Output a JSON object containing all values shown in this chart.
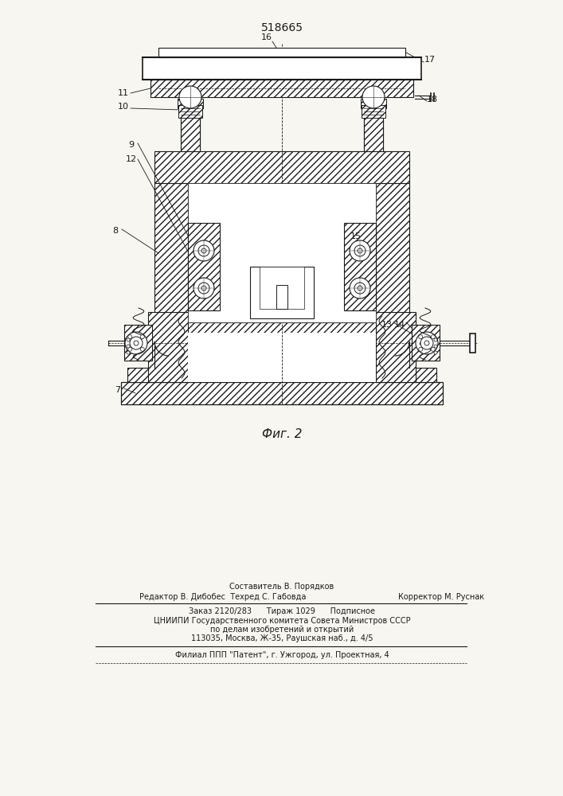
{
  "patent_number": "518665",
  "fig_label": "Фиг. 2",
  "bg_color": "#f8f6f0",
  "line_color": "#1a1a1a",
  "compositor": "Составитель В. Порядков",
  "editor": "Редактор В. Дибобес  Техред С. Габовда",
  "corrector": "Корректор М. Руснак",
  "order_line": "Заказ 2120/283      Тираж 1029      Подписное",
  "org_line1": "ЦНИИПИ Государственного комитета Совета Министров СССР",
  "org_line2": "по делам изобретений и открытий",
  "addr_line": "113035, Москва, Ж-35, Раушская наб., д. 4/5",
  "branch_line": "Филиал ППП \"Патент\", г. Ужгород, ул. Проектная, 4"
}
